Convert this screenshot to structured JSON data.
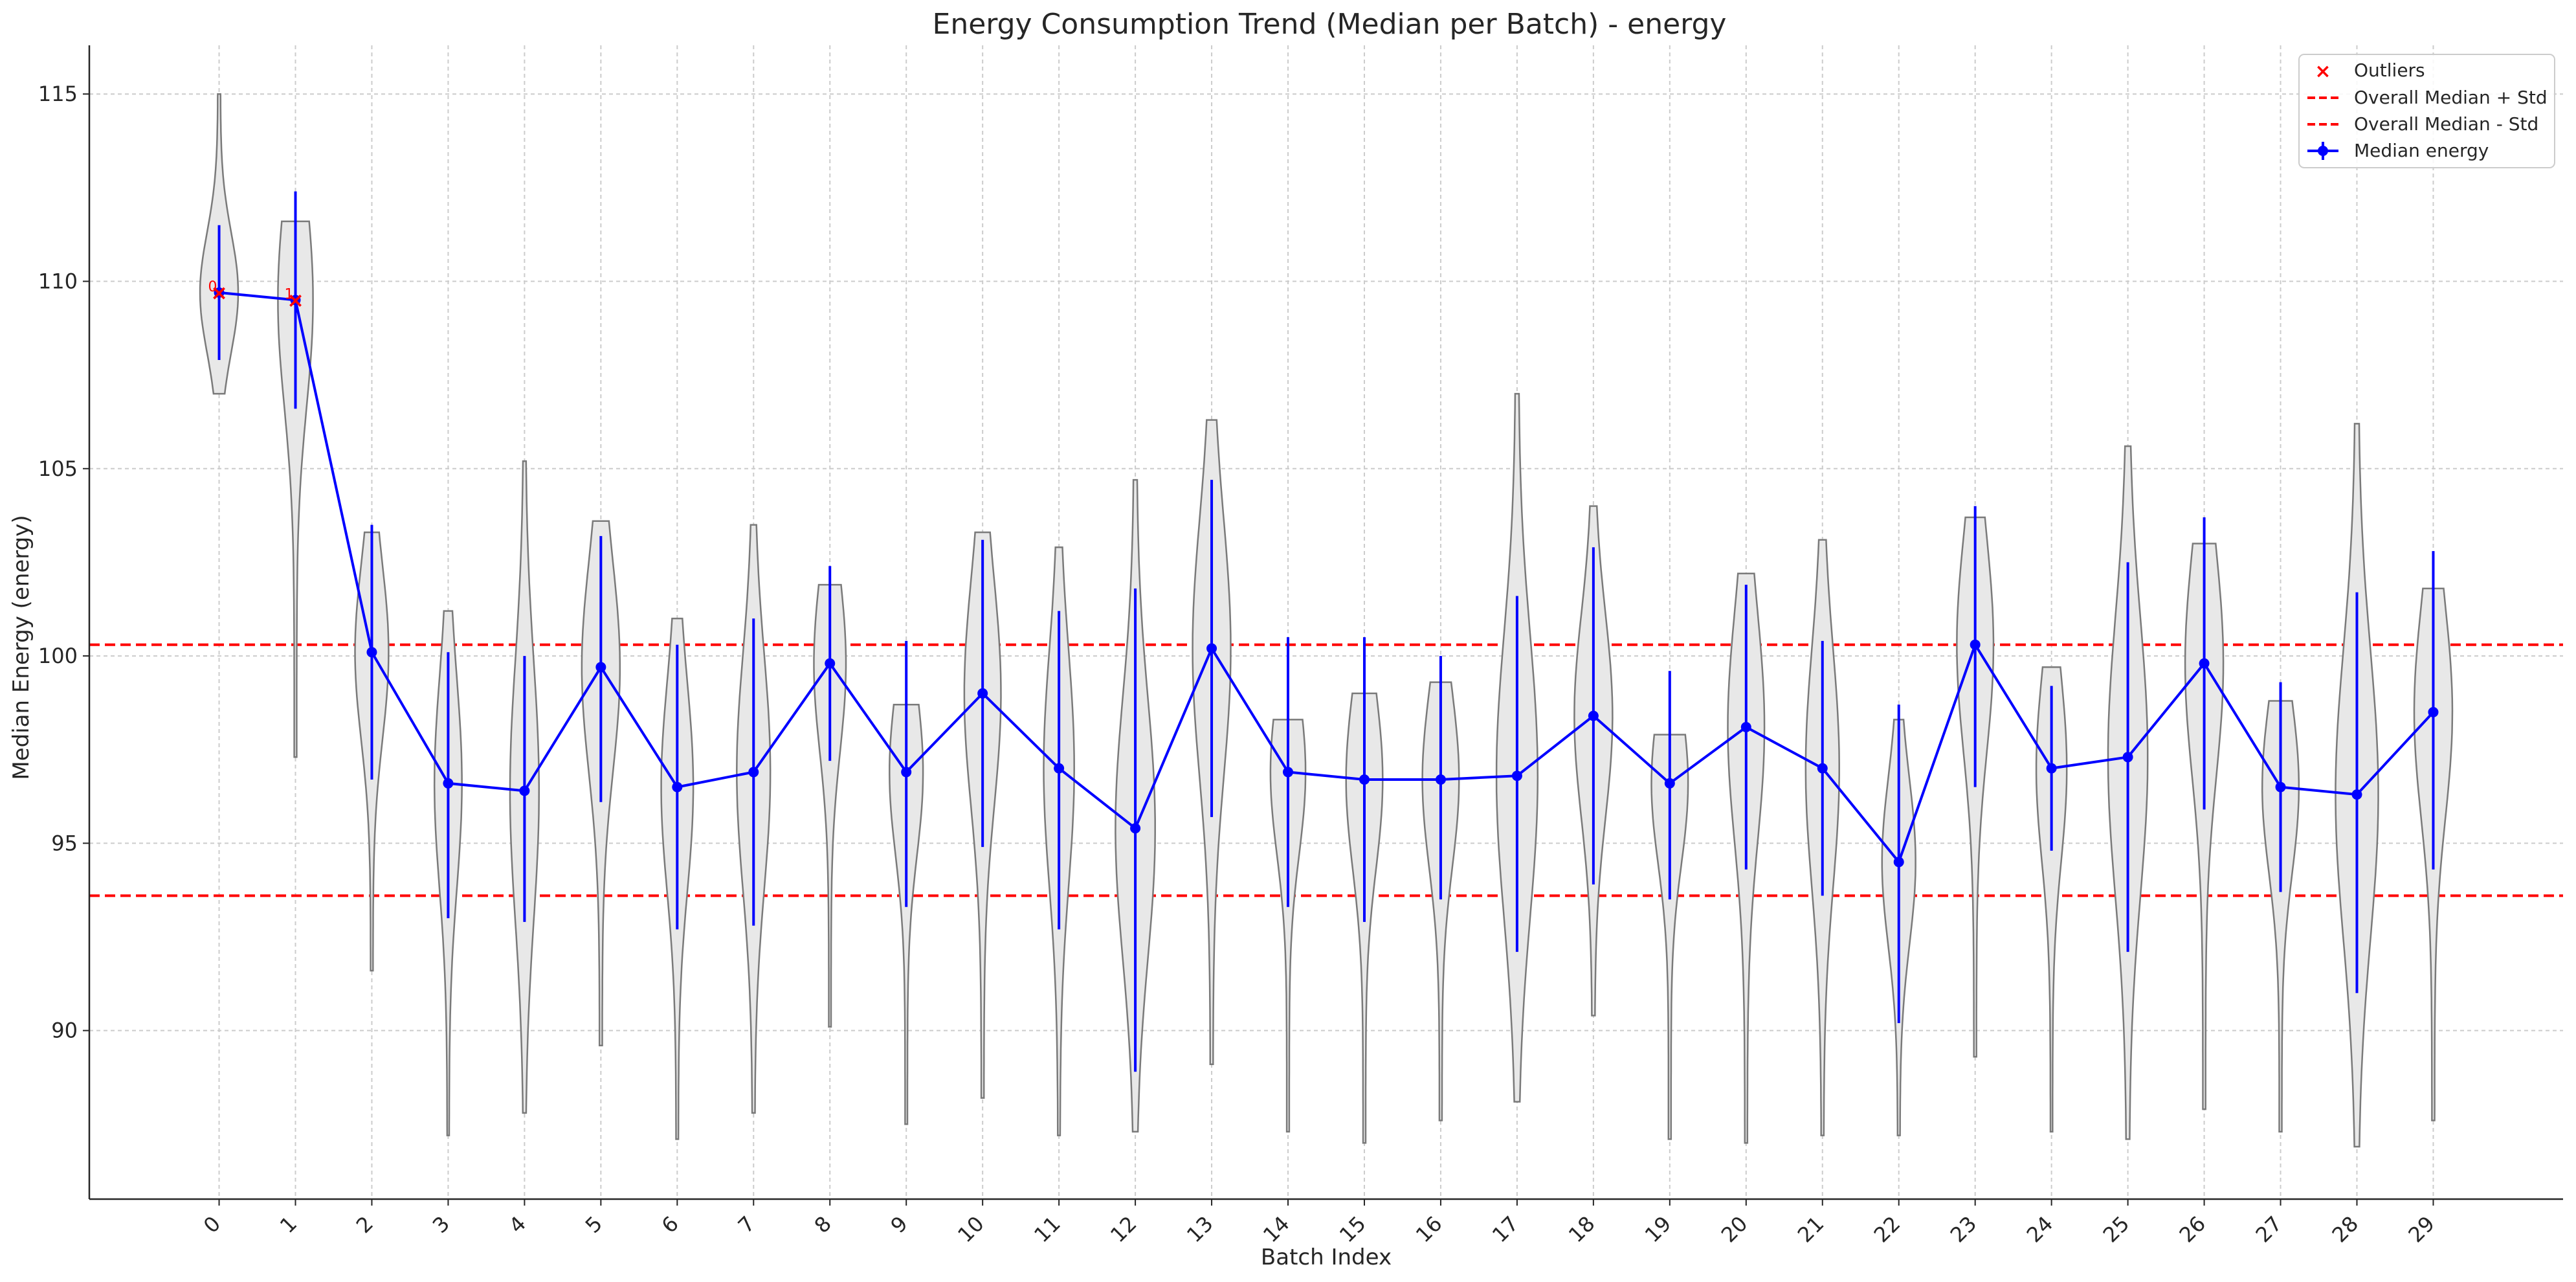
{
  "chart_data": {
    "type": "line",
    "title": "Energy Consumption Trend (Median per Batch) - energy",
    "xlabel": "Batch Index",
    "ylabel": "Median Energy (energy)",
    "xlim": [
      -1.7,
      30.7
    ],
    "ylim": [
      85.5,
      116.3
    ],
    "yticks": [
      90,
      95,
      100,
      105,
      110,
      115
    ],
    "xticks": [
      0,
      1,
      2,
      3,
      4,
      5,
      6,
      7,
      8,
      9,
      10,
      11,
      12,
      13,
      14,
      15,
      16,
      17,
      18,
      19,
      20,
      21,
      22,
      23,
      24,
      25,
      26,
      27,
      28,
      29
    ],
    "grid": true,
    "legend_position": "top-right",
    "series": [
      {
        "name": "Median energy",
        "color": "#0000ff",
        "x": [
          0,
          1,
          2,
          3,
          4,
          5,
          6,
          7,
          8,
          9,
          10,
          11,
          12,
          13,
          14,
          15,
          16,
          17,
          18,
          19,
          20,
          21,
          22,
          23,
          24,
          25,
          26,
          27,
          28,
          29
        ],
        "values": [
          109.7,
          109.5,
          100.1,
          96.6,
          96.4,
          99.7,
          96.5,
          96.9,
          99.8,
          96.9,
          99.0,
          97.0,
          95.4,
          100.2,
          96.9,
          96.7,
          96.7,
          96.8,
          98.4,
          96.6,
          98.1,
          97.0,
          94.5,
          100.3,
          97.0,
          97.3,
          99.8,
          96.5,
          96.3,
          98.5
        ],
        "error_low": [
          107.9,
          106.6,
          96.7,
          93.0,
          92.9,
          96.1,
          92.7,
          92.8,
          97.2,
          93.3,
          94.9,
          92.7,
          88.9,
          95.7,
          93.3,
          92.9,
          93.5,
          92.1,
          93.9,
          93.5,
          94.3,
          93.6,
          90.2,
          96.5,
          94.8,
          92.1,
          95.9,
          93.7,
          91.0,
          94.3
        ],
        "error_high": [
          111.5,
          112.4,
          103.5,
          100.1,
          100.0,
          103.2,
          100.3,
          101.0,
          102.4,
          100.4,
          103.1,
          101.2,
          101.8,
          104.7,
          100.5,
          100.5,
          100.0,
          101.6,
          102.9,
          99.6,
          101.9,
          100.4,
          98.7,
          104.0,
          99.2,
          102.5,
          103.7,
          99.3,
          101.7,
          102.8
        ]
      }
    ],
    "violins": {
      "color": "#e8e8e8",
      "edge_color": "#7a7a7a",
      "min": [
        107.0,
        97.3,
        91.6,
        87.2,
        87.8,
        89.6,
        87.1,
        87.8,
        90.1,
        87.5,
        88.2,
        87.2,
        87.3,
        89.1,
        87.3,
        87.0,
        87.6,
        88.1,
        90.4,
        87.1,
        87.0,
        87.2,
        87.2,
        89.3,
        87.3,
        87.1,
        87.9,
        87.3,
        86.9,
        87.6
      ],
      "max": [
        115.0,
        111.6,
        103.3,
        101.2,
        105.2,
        103.6,
        101.0,
        103.5,
        101.9,
        98.7,
        103.3,
        102.9,
        104.7,
        106.3,
        98.3,
        99.0,
        99.3,
        107.0,
        104.0,
        97.9,
        102.2,
        103.1,
        98.3,
        103.7,
        99.7,
        105.6,
        103.0,
        98.8,
        106.2,
        101.8
      ],
      "max_halfwidth": [
        0.25,
        0.23,
        0.22,
        0.18,
        0.19,
        0.25,
        0.21,
        0.22,
        0.21,
        0.22,
        0.24,
        0.2,
        0.26,
        0.25,
        0.23,
        0.24,
        0.24,
        0.27,
        0.25,
        0.24,
        0.24,
        0.22,
        0.22,
        0.24,
        0.2,
        0.26,
        0.25,
        0.24,
        0.28,
        0.25
      ]
    },
    "outliers": {
      "name": "Outliers",
      "color": "#ff0000",
      "points": [
        {
          "x": 0,
          "y": 109.7,
          "label": "0"
        },
        {
          "x": 1,
          "y": 109.5,
          "label": "1"
        }
      ]
    },
    "reference_lines": [
      {
        "name": "Overall Median + Std",
        "y": 100.3,
        "color": "#ff0000",
        "style": "dashed"
      },
      {
        "name": "Overall Median - Std",
        "y": 93.6,
        "color": "#ff0000",
        "style": "dashed"
      }
    ]
  }
}
